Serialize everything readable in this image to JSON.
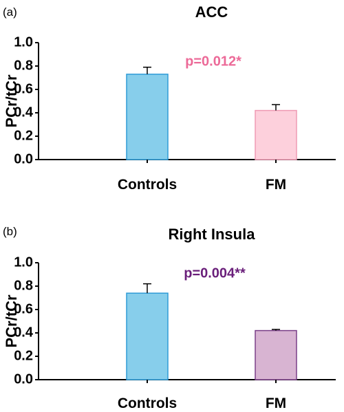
{
  "chart_data": [
    {
      "type": "bar",
      "panel_label": "(a)",
      "title": "ACC",
      "ylabel": "PCr/tCr",
      "xlabel": "",
      "categories": [
        "Controls",
        "FM"
      ],
      "values": [
        0.73,
        0.42
      ],
      "error": [
        0.06,
        0.05
      ],
      "ylim": [
        0.0,
        1.0
      ],
      "yticks": [
        "0.0",
        "0.2",
        "0.4",
        "0.6",
        "0.8",
        "1.0"
      ],
      "bar_colors": [
        "#87ceeb",
        "#fdd0dc"
      ],
      "bar_edge_colors": [
        "#2e9bd6",
        "#ef9ab4"
      ],
      "annotation": "p=0.012*",
      "annotation_color": "#ec6a98",
      "grid": false,
      "legend": "none"
    },
    {
      "type": "bar",
      "panel_label": "(b)",
      "title": "Right Insula",
      "ylabel": "PCr/tCr",
      "xlabel": "",
      "categories": [
        "Controls",
        "FM"
      ],
      "values": [
        0.74,
        0.42
      ],
      "error": [
        0.08,
        0.01
      ],
      "ylim": [
        0.0,
        1.0
      ],
      "yticks": [
        "0.0",
        "0.2",
        "0.4",
        "0.6",
        "0.8",
        "1.0"
      ],
      "bar_colors": [
        "#87ceeb",
        "#d8b4d2"
      ],
      "bar_edge_colors": [
        "#2e9bd6",
        "#7a3f88"
      ],
      "annotation": "p=0.004**",
      "annotation_color": "#6a1f7a",
      "grid": false,
      "legend": "none"
    }
  ]
}
